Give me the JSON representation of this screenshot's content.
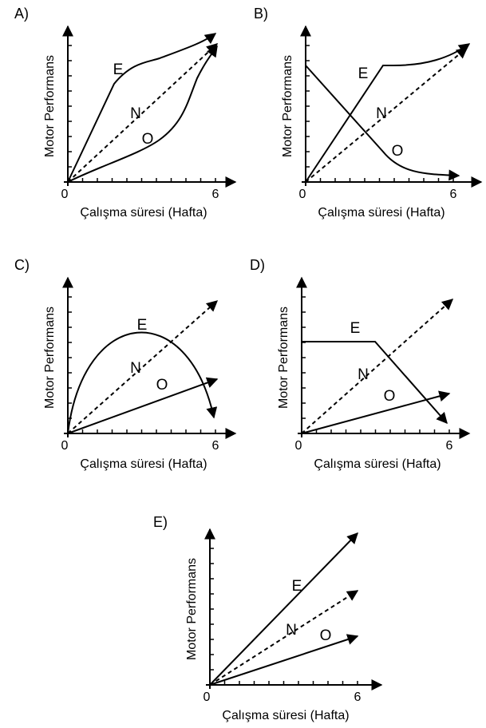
{
  "panels": [
    {
      "label": "A)",
      "y_label": "Motor Performans",
      "x_label": "Çalışma süresi (Hafta)",
      "x_ticks": [
        "0",
        "6"
      ],
      "curves": [
        "E",
        "N",
        "O"
      ]
    },
    {
      "label": "B)",
      "y_label": "Motor Performans",
      "x_label": "Çalışma süresi (Hafta)",
      "x_ticks": [
        "0",
        "6"
      ],
      "curves": [
        "E",
        "N",
        "O"
      ]
    },
    {
      "label": "C)",
      "y_label": "Motor Performans",
      "x_label": "Çalışma süresi (Hafta)",
      "x_ticks": [
        "0",
        "6"
      ],
      "curves": [
        "E",
        "N",
        "O"
      ]
    },
    {
      "label": "D)",
      "y_label": "Motor Performans",
      "x_label": "Çalışma süresi (Hafta)",
      "x_ticks": [
        "0",
        "6"
      ],
      "curves": [
        "E",
        "N",
        "O"
      ]
    },
    {
      "label": "E)",
      "y_label": "Motor Performans",
      "x_label": "Çalışma süresi (Hafta)",
      "x_ticks": [
        "0",
        "6"
      ],
      "curves": [
        "E",
        "N",
        "O"
      ]
    }
  ]
}
